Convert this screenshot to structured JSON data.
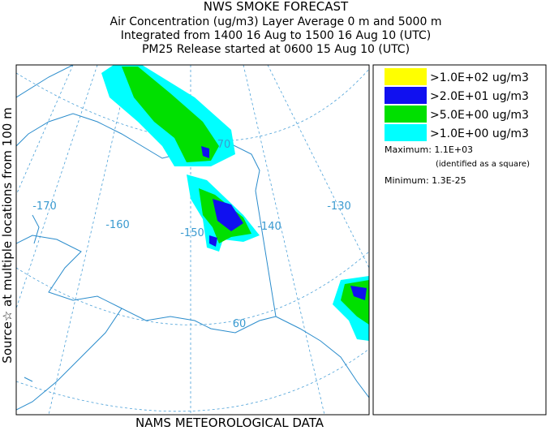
{
  "header": {
    "title": "NWS SMOKE FORECAST",
    "lines": [
      "Air Concentration (ug/m3) Layer Average    0 m and  5000 m",
      "Integrated from 1400 16 Aug to 1500 16 Aug 10 (UTC)",
      "PM25 Release started at 0600 15 Aug 10 (UTC)"
    ]
  },
  "side_label": "Source☆   at multiple locations   from   100 m",
  "map": {
    "labels": [
      "-170",
      "-160",
      "-150",
      "-140",
      "-130",
      "70",
      "60"
    ]
  },
  "legend": {
    "entries": [
      {
        "label": ">1.0E+02 ug/m3",
        "color": "#ffff00"
      },
      {
        "label": ">2.0E+01 ug/m3",
        "color": "#1010f0"
      },
      {
        "label": ">5.0E+00 ug/m3",
        "color": "#00e000"
      },
      {
        "label": ">1.0E+00 ug/m3",
        "color": "#00ffff"
      }
    ],
    "maximum": "Maximum: 1.1E+03",
    "maximum_note": "(identified as a square)",
    "minimum": "Minimum: 1.3E-25"
  },
  "footer": "NAMS METEOROLOGICAL DATA"
}
